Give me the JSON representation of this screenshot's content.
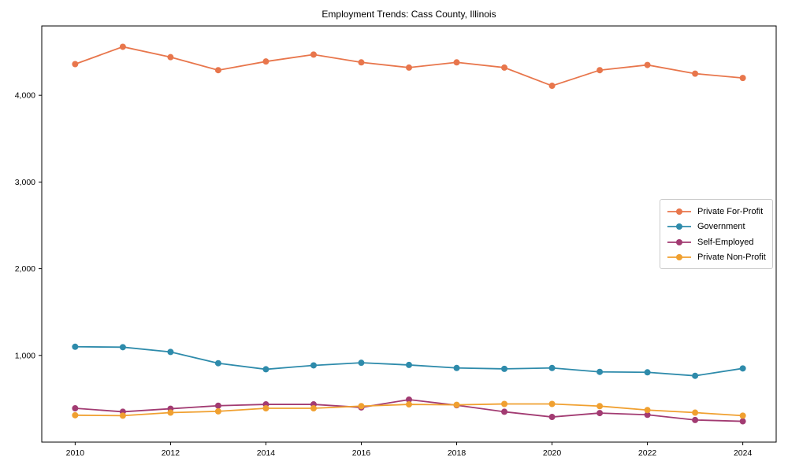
{
  "chart_data": {
    "type": "line",
    "title": "Employment Trends: Cass County, Illinois",
    "xlabel": "",
    "ylabel": "",
    "background_color": "#ffffff",
    "axis_color": "#000000",
    "grid": false,
    "legend_position": "center-right",
    "x": [
      2010,
      2011,
      2012,
      2013,
      2014,
      2015,
      2016,
      2017,
      2018,
      2019,
      2020,
      2021,
      2022,
      2023,
      2024
    ],
    "series": [
      {
        "name": "Private For-Profit",
        "color": "#E8764C",
        "values": [
          4360,
          4560,
          4440,
          4290,
          4390,
          4470,
          4380,
          4320,
          4380,
          4320,
          4110,
          4290,
          4350,
          4250,
          4200
        ]
      },
      {
        "name": "Government",
        "color": "#2E8BAB",
        "values": [
          1100,
          1095,
          1040,
          910,
          840,
          885,
          915,
          890,
          855,
          845,
          855,
          810,
          805,
          765,
          850
        ]
      },
      {
        "name": "Self-Employed",
        "color": "#A23B72",
        "values": [
          390,
          350,
          385,
          420,
          435,
          435,
          400,
          490,
          425,
          350,
          290,
          335,
          315,
          255,
          240
        ]
      },
      {
        "name": "Private Non-Profit",
        "color": "#F0A030",
        "values": [
          310,
          305,
          340,
          355,
          390,
          390,
          415,
          435,
          430,
          440,
          440,
          415,
          370,
          340,
          305
        ]
      }
    ],
    "xlim": [
      2009.3,
      2024.7
    ],
    "ylim": [
      0,
      4800
    ],
    "x_ticks": {
      "values": [
        2010,
        2012,
        2014,
        2016,
        2018,
        2020,
        2022,
        2024
      ],
      "labels": [
        "2010",
        "2012",
        "2014",
        "2016",
        "2018",
        "2020",
        "2022",
        "2024"
      ]
    },
    "y_ticks": {
      "values": [
        1000,
        2000,
        3000,
        4000
      ],
      "labels": [
        "1,000",
        "2,000",
        "3,000",
        "4,000"
      ]
    }
  }
}
